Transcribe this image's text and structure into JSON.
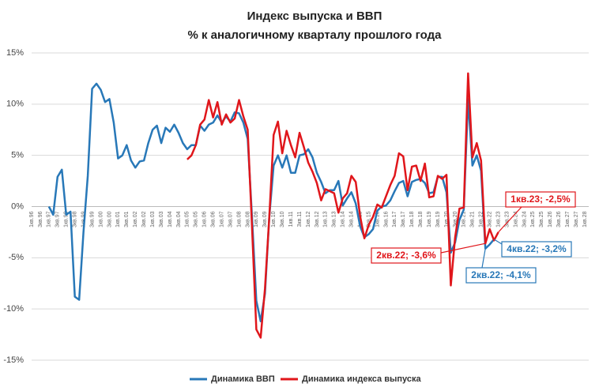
{
  "chart_data": {
    "type": "line",
    "title": "Индекс выпуска и ВВП",
    "subtitle": "% к аналогичному кварталу прошлого года",
    "categories": [
      "1кв.96",
      null,
      "3кв.96",
      null,
      "1кв.97",
      null,
      "3кв.97",
      null,
      "1кв.98",
      null,
      "3кв.98",
      null,
      "1кв.99",
      null,
      "3кв.99",
      null,
      "1кв.00",
      null,
      "3кв.00",
      null,
      "1кв.01",
      null,
      "3кв.01",
      null,
      "1кв.02",
      null,
      "3кв.02",
      null,
      "1кв.03",
      null,
      "3кв.03",
      null,
      "1кв.04",
      null,
      "3кв.04",
      null,
      "1кв.05",
      null,
      "3кв.05",
      null,
      "1кв.06",
      null,
      "3кв.06",
      null,
      "1кв.07",
      null,
      "3кв.07",
      null,
      "1кв.08",
      null,
      "3кв.08",
      null,
      "1кв.09",
      null,
      "3кв.09",
      null,
      "1кв.10",
      null,
      "3кв.10",
      null,
      "1кв.11",
      null,
      "3кв.11",
      null,
      "1кв.12",
      null,
      "3кв.12",
      null,
      "1кв.13",
      null,
      "3кв.13",
      null,
      "1кв.14",
      null,
      "3кв.14",
      null,
      "1кв.15",
      null,
      "3кв.15",
      null,
      "1кв.16",
      null,
      "3кв.16",
      null,
      "1кв.17",
      null,
      "3кв.17",
      null,
      "1кв.18",
      null,
      "3кв.18",
      null,
      "1кв.19",
      null,
      "3кв.19",
      null,
      "1кв.20",
      null,
      "3кв.20",
      null,
      "1кв.21",
      null,
      "3кв.21",
      null,
      "1кв.22",
      null,
      "3кв.22",
      null,
      "1кв.23",
      null,
      "3кв.23",
      null,
      "1кв.24",
      null,
      "3кв.24",
      null,
      "1кв.25",
      null,
      "3кв.25",
      null,
      "1кв.26",
      null,
      "3кв.26",
      null,
      "1кв.27",
      null,
      "3кв.27",
      null,
      "1кв.28"
    ],
    "series": [
      {
        "name": "Динамика ВВП",
        "color": "#2878b8",
        "values": [
          null,
          null,
          null,
          null,
          0,
          -0.8,
          2.9,
          3.6,
          -0.8,
          -0.5,
          -8.8,
          -9.1,
          -2.5,
          3.0,
          11.5,
          12.0,
          11.4,
          10.2,
          10.5,
          8.2,
          4.7,
          5.0,
          6.0,
          4.5,
          3.8,
          4.4,
          4.5,
          6.2,
          7.5,
          7.9,
          6.2,
          7.7,
          7.3,
          8.0,
          7.2,
          6.2,
          5.6,
          6.0,
          6.0,
          7.9,
          7.4,
          8.0,
          8.2,
          8.9,
          8.2,
          8.8,
          8.3,
          9.2,
          9.1,
          8.2,
          6.6,
          -1.0,
          -9.2,
          -11.2,
          -8.5,
          -1.0,
          4.0,
          5.0,
          3.8,
          5.0,
          3.3,
          3.3,
          5.0,
          5.1,
          5.6,
          4.8,
          3.3,
          2.4,
          1.3,
          1.6,
          1.6,
          2.5,
          0.1,
          0.8,
          1.4,
          0.3,
          -1.9,
          -3.0,
          -2.7,
          -2.2,
          -0.4,
          0.0,
          0.1,
          0.6,
          1.5,
          2.3,
          2.5,
          1.0,
          2.4,
          2.6,
          2.7,
          2.3,
          1.3,
          1.4,
          2.9,
          2.9,
          1.4,
          -4.5,
          -3.5,
          -1.3,
          -0.3,
          10.5,
          4.0,
          5.0,
          3.5,
          -4.1,
          -3.7,
          -3.2,
          null,
          null,
          null,
          null,
          null,
          null,
          null,
          null,
          null,
          null,
          null,
          null,
          null,
          null,
          null,
          null,
          null,
          null,
          null,
          null,
          null
        ]
      },
      {
        "name": "Динамика индекса выпуска",
        "color": "#e0161b",
        "values": [
          null,
          null,
          null,
          null,
          null,
          null,
          null,
          null,
          null,
          null,
          null,
          null,
          null,
          null,
          null,
          null,
          null,
          null,
          null,
          null,
          null,
          null,
          null,
          null,
          null,
          null,
          null,
          null,
          null,
          null,
          null,
          null,
          null,
          null,
          null,
          null,
          4.6,
          5.0,
          6.0,
          8.0,
          8.5,
          10.4,
          8.7,
          10.2,
          8.0,
          9.0,
          8.2,
          8.6,
          10.4,
          8.8,
          7.5,
          -2.0,
          -12.0,
          -12.8,
          -8.0,
          -1.0,
          7.0,
          8.3,
          5.2,
          7.4,
          6.0,
          4.8,
          7.2,
          5.8,
          4.3,
          3.4,
          2.3,
          0.6,
          1.7,
          1.5,
          1.3,
          -0.6,
          0.8,
          1.3,
          3.0,
          2.4,
          -0.9,
          -3.1,
          -1.8,
          -1.0,
          0.2,
          -0.1,
          1.0,
          2.1,
          3.0,
          5.2,
          4.9,
          1.6,
          3.9,
          4.0,
          2.5,
          4.2,
          0.9,
          1.0,
          3.0,
          2.7,
          3.1,
          -7.7,
          -3.0,
          -0.2,
          -0.1,
          13.0,
          4.8,
          6.2,
          4.5,
          -3.6,
          -2.2,
          -3.3,
          -2.5,
          null,
          null,
          null,
          null,
          null,
          null,
          null,
          null,
          null,
          null,
          null,
          null,
          null,
          null,
          null,
          null,
          null,
          null,
          null,
          null
        ]
      }
    ],
    "ylim": [
      -15,
      15
    ],
    "yticks": [
      {
        "value": -15,
        "label": "-15%"
      },
      {
        "value": -10,
        "label": "-10%"
      },
      {
        "value": -5,
        "label": "-5%"
      },
      {
        "value": 0,
        "label": "0%"
      },
      {
        "value": 5,
        "label": "5%"
      },
      {
        "value": 10,
        "label": "10%"
      },
      {
        "value": 15,
        "label": "15%"
      }
    ],
    "grid": true,
    "legend": "bottom",
    "annotations": [
      {
        "text": "1кв.23; -2,5%",
        "color": "#e0161b"
      },
      {
        "text": "4кв.22; -3,2%",
        "color": "#2878b8"
      },
      {
        "text": "2кв.22; -3,6%",
        "color": "#e0161b"
      },
      {
        "text": "2кв.22; -4,1%",
        "color": "#2878b8"
      }
    ]
  }
}
